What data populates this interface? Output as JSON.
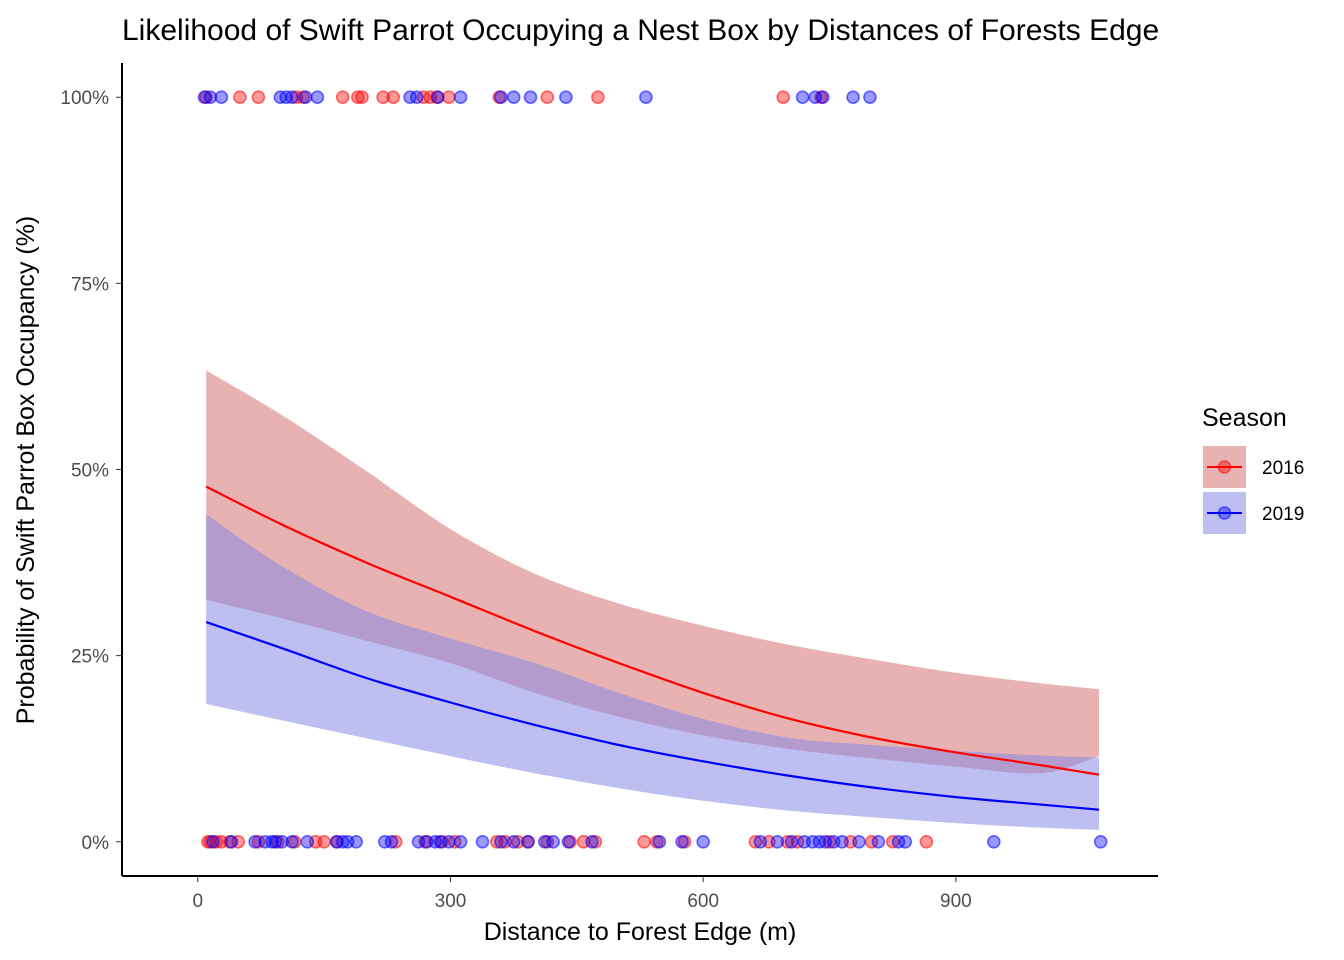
{
  "chart_data": {
    "type": "scatter",
    "title": "Likelihood of Swift Parrot Occupying a Nest Box by Distances of Forests Edge",
    "xlabel": "Distance to Forest Edge (m)",
    "ylabel": "Probability of Swift Parrot Box Occupancy (%)",
    "xlim": [
      -90,
      1140
    ],
    "ylim": [
      -0.046,
      1.046
    ],
    "x_ticks": [
      0,
      300,
      600,
      900
    ],
    "x_tick_labels": [
      "0",
      "300",
      "600",
      "900"
    ],
    "y_ticks": [
      0,
      0.25,
      0.5,
      0.75,
      1.0
    ],
    "y_tick_labels": [
      "0%",
      "25%",
      "50%",
      "75%",
      "100%"
    ],
    "grid": false,
    "legend": {
      "title": "Season",
      "placement": "right",
      "entries": [
        "2016",
        "2019"
      ]
    },
    "series": [
      {
        "name": "2016",
        "color": "#ff0000",
        "ribbon_color": "#d57373",
        "fit": {
          "x": [
            10,
            100,
            200,
            300,
            400,
            500,
            600,
            700,
            800,
            900,
            1000,
            1070
          ],
          "y": [
            0.477,
            0.426,
            0.375,
            0.329,
            0.283,
            0.24,
            0.2,
            0.166,
            0.14,
            0.12,
            0.103,
            0.09
          ]
        },
        "ci_upper": {
          "x": [
            10,
            100,
            200,
            300,
            400,
            500,
            600,
            700,
            800,
            900,
            1000,
            1070
          ],
          "y": [
            0.633,
            0.573,
            0.498,
            0.42,
            0.36,
            0.32,
            0.29,
            0.265,
            0.245,
            0.227,
            0.213,
            0.205
          ]
        },
        "ci_lower": {
          "x": [
            10,
            100,
            200,
            300,
            400,
            500,
            600,
            700,
            800,
            900,
            1000,
            1070
          ],
          "y": [
            0.325,
            0.3,
            0.27,
            0.24,
            0.2,
            0.168,
            0.143,
            0.125,
            0.112,
            0.101,
            0.092,
            0.115
          ]
        },
        "points_x_at_1": [
          10,
          50,
          72,
          117,
          125,
          172,
          190,
          195,
          220,
          232,
          268,
          276,
          284,
          298,
          358,
          415,
          475,
          695,
          740
        ],
        "points_x_at_0": [
          12,
          15,
          22,
          28,
          38,
          48,
          72,
          95,
          115,
          140,
          150,
          165,
          235,
          270,
          290,
          305,
          355,
          365,
          380,
          392,
          415,
          442,
          458,
          472,
          530,
          545,
          578,
          662,
          678,
          700,
          712,
          750,
          775,
          800,
          825,
          865
        ]
      },
      {
        "name": "2019",
        "color": "#0000ff",
        "ribbon_color": "#8888e4",
        "fit": {
          "x": [
            10,
            100,
            200,
            300,
            400,
            500,
            600,
            700,
            800,
            900,
            1000,
            1070
          ],
          "y": [
            0.295,
            0.26,
            0.22,
            0.187,
            0.157,
            0.13,
            0.108,
            0.089,
            0.073,
            0.06,
            0.05,
            0.043
          ]
        },
        "ci_upper": {
          "x": [
            10,
            100,
            200,
            300,
            400,
            500,
            600,
            700,
            800,
            900,
            1000,
            1070
          ],
          "y": [
            0.44,
            0.37,
            0.31,
            0.273,
            0.24,
            0.2,
            0.165,
            0.14,
            0.13,
            0.122,
            0.116,
            0.113
          ]
        },
        "ci_lower": {
          "x": [
            10,
            100,
            200,
            300,
            400,
            500,
            600,
            700,
            800,
            900,
            1000,
            1070
          ],
          "y": [
            0.185,
            0.163,
            0.139,
            0.115,
            0.092,
            0.072,
            0.055,
            0.042,
            0.033,
            0.025,
            0.019,
            0.016
          ]
        },
        "points_x_at_1": [
          8,
          15,
          28,
          98,
          105,
          112,
          128,
          142,
          252,
          260,
          285,
          312,
          360,
          375,
          395,
          437,
          532,
          718,
          733,
          742,
          778,
          798
        ],
        "points_x_at_0": [
          18,
          40,
          68,
          80,
          88,
          92,
          100,
          112,
          130,
          165,
          172,
          178,
          188,
          222,
          230,
          262,
          272,
          282,
          288,
          298,
          312,
          338,
          360,
          375,
          392,
          412,
          422,
          440,
          468,
          548,
          575,
          600,
          668,
          688,
          705,
          720,
          730,
          738,
          745,
          755,
          765,
          785,
          808,
          832,
          840,
          945,
          1072
        ]
      }
    ]
  }
}
